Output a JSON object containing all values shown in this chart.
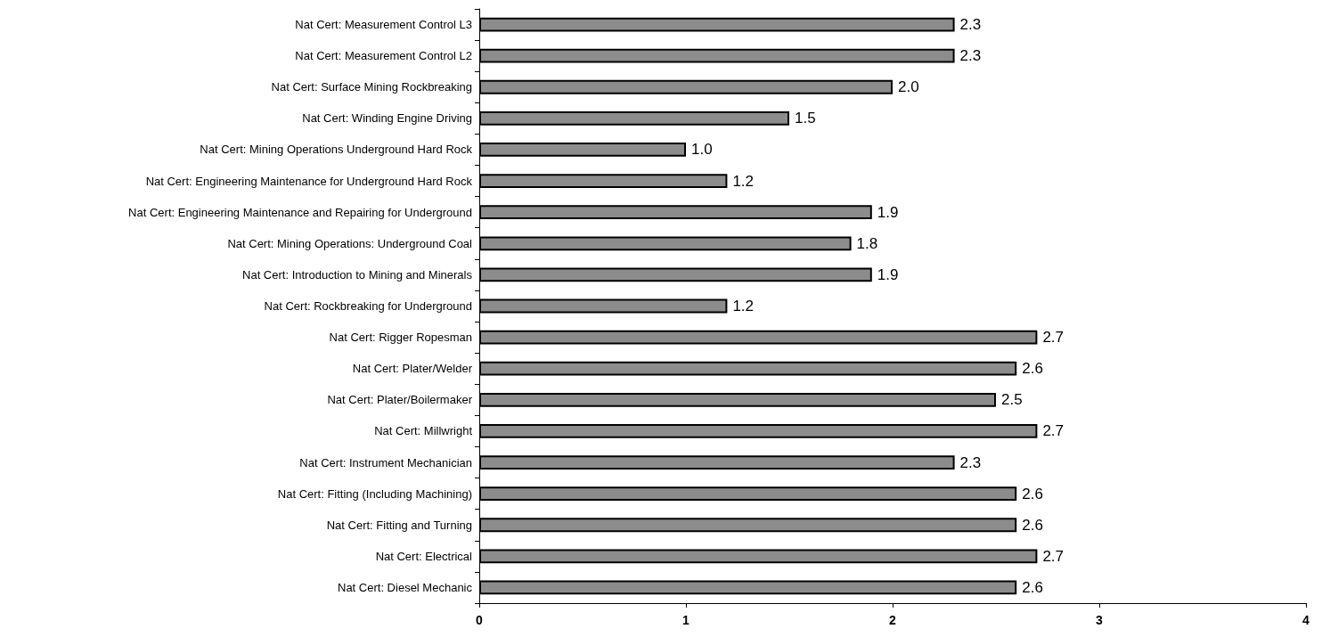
{
  "chart_data": {
    "type": "bar",
    "orientation": "horizontal",
    "categories": [
      "Nat Cert: Measurement Control L3",
      "Nat Cert: Measurement Control L2",
      "Nat Cert: Surface Mining Rockbreaking",
      "Nat Cert: Winding Engine Driving",
      "Nat Cert: Mining Operations Underground Hard Rock",
      "Nat Cert: Engineering Maintenance for Underground Hard Rock",
      "Nat Cert: Engineering Maintenance and Repairing for Underground",
      "Nat Cert: Mining Operations: Underground Coal",
      "Nat Cert: Introduction to Mining and Minerals",
      "Nat Cert: Rockbreaking for Underground",
      "Nat Cert: Rigger Ropesman",
      "Nat Cert: Plater/Welder",
      "Nat Cert: Plater/Boilermaker",
      "Nat Cert: Millwright",
      "Nat Cert: Instrument Mechanician",
      "Nat Cert: Fitting (Including Machining)",
      "Nat Cert: Fitting and Turning",
      "Nat Cert: Electrical",
      "Nat Cert: Diesel Mechanic"
    ],
    "values": [
      2.3,
      2.3,
      2.0,
      1.5,
      1.0,
      1.2,
      1.9,
      1.8,
      1.9,
      1.2,
      2.7,
      2.6,
      2.5,
      2.7,
      2.3,
      2.6,
      2.6,
      2.7,
      2.6
    ],
    "value_labels": [
      "2.3",
      "2.3",
      "2.0",
      "1.5",
      "1.0",
      "1.2",
      "1.9",
      "1.8",
      "1.9",
      "1.2",
      "2.7",
      "2.6",
      "2.5",
      "2.7",
      "2.3",
      "2.6",
      "2.6",
      "2.7",
      "2.6"
    ],
    "color": "#8c8c8c",
    "xlim": [
      0,
      4
    ],
    "xticks": [
      0,
      1,
      2,
      3,
      4
    ],
    "grid": false
  }
}
